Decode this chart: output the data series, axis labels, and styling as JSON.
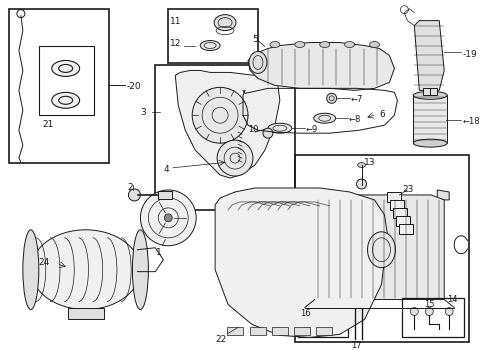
{
  "bg_color": "#ffffff",
  "line_color": "#1a1a1a",
  "fig_width": 4.89,
  "fig_height": 3.6,
  "dpi": 100,
  "border_color": "#000000",
  "gray_fill": "#e8e8e8",
  "light_fill": "#f4f4f4"
}
